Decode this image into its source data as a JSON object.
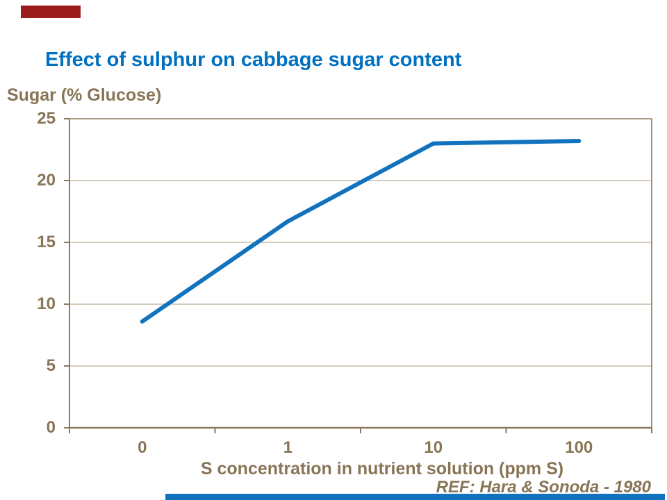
{
  "slide": {
    "title": "Effect of sulphur on cabbage sugar content",
    "reference": "REF: Hara & Sonoda - 1980"
  },
  "colors": {
    "title_blue": "#0070C0",
    "line_blue": "#1173BD",
    "axis_brown": "#8A795C",
    "grid_brown": "#A99A7F",
    "label_brown": "#877556",
    "accent_red": "#9A1C1C",
    "accent_blue": "#1072BD"
  },
  "chart_data": {
    "type": "line",
    "title": "Effect of sulphur on cabbage sugar content",
    "ylabel": "Sugar (% Glucose)",
    "xlabel": "S concentration in nutrient solution (ppm S)",
    "categories": [
      "0",
      "1",
      "10",
      "100"
    ],
    "series": [
      {
        "name": "Sugar (% Glucose)",
        "values": [
          8.6,
          16.7,
          23.0,
          23.2
        ]
      }
    ],
    "ylim": [
      0,
      25
    ],
    "yticks": [
      0,
      5,
      10,
      15,
      20,
      25
    ],
    "grid": "horizontal",
    "legend": "none",
    "annotation": "REF: Hara & Sonoda - 1980"
  }
}
